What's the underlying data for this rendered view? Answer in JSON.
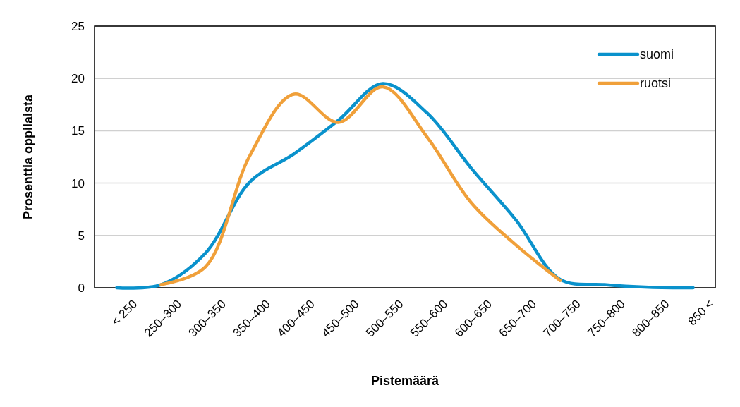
{
  "chart_data": {
    "type": "line",
    "xlabel": "Pistemäärä",
    "ylabel": "Prosenttia oppilaista",
    "categories": [
      "< 250",
      "250–300",
      "300–350",
      "350–400",
      "400–450",
      "450–500",
      "500–550",
      "550–600",
      "600–650",
      "650–700",
      "700–750",
      "750–800",
      "800–850",
      "850 <"
    ],
    "series": [
      {
        "name": "suomi",
        "color": "#0a92cc",
        "values": [
          0,
          0.3,
          3.3,
          10.1,
          12.8,
          16.0,
          19.5,
          16.7,
          11.4,
          6.5,
          0.8,
          0.3,
          0.05,
          0
        ]
      },
      {
        "name": "ruotsi",
        "color": "#f0a03a",
        "values": [
          null,
          0.3,
          2.0,
          12.6,
          18.5,
          15.8,
          19.2,
          14.4,
          8.1,
          4.1,
          0.7,
          null,
          null,
          null
        ]
      }
    ],
    "ylim": [
      0,
      25
    ],
    "yticks": [
      0,
      5,
      10,
      15,
      20,
      25
    ],
    "grid": "y",
    "legend": "top right",
    "marker": "none",
    "line_style": "solid"
  }
}
